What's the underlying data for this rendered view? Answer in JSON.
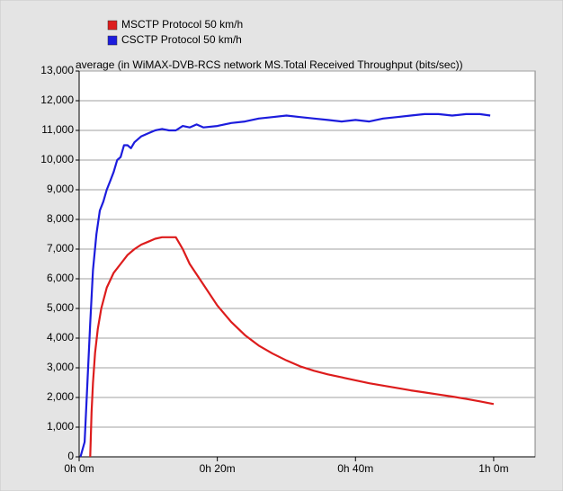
{
  "chart_data": {
    "type": "line",
    "title": "average (in WiMAX-DVB-RCS network MS.Total Received Throughput (bits/sec))",
    "legend": "top-left",
    "grid": true,
    "xlim": [
      0,
      66
    ],
    "xticks": [
      {
        "value": 0,
        "label": "0h 0m"
      },
      {
        "value": 20,
        "label": "0h 20m"
      },
      {
        "value": 40,
        "label": "0h 40m"
      },
      {
        "value": 60,
        "label": "1h 0m"
      }
    ],
    "ylim": [
      0,
      13000
    ],
    "yticks": [
      0,
      {
        "value": 1000,
        "label": "1,000"
      },
      {
        "value": 2000,
        "label": "2,000"
      },
      {
        "value": 3000,
        "label": "3,000"
      },
      {
        "value": 4000,
        "label": "4,000"
      },
      {
        "value": 5000,
        "label": "5,000"
      },
      {
        "value": 6000,
        "label": "6,000"
      },
      {
        "value": 7000,
        "label": "7,000"
      },
      {
        "value": 8000,
        "label": "8,000"
      },
      {
        "value": 9000,
        "label": "9,000"
      },
      {
        "value": 10000,
        "label": "10,000"
      },
      {
        "value": 11000,
        "label": "11,000"
      },
      {
        "value": 12000,
        "label": "12,000"
      },
      {
        "value": 13000,
        "label": "13,000"
      }
    ],
    "series": [
      {
        "name": "MSCTP Protocol 50 km/h",
        "color": "#dd1c1c",
        "x": [
          1.6,
          1.8,
          2,
          2.3,
          2.7,
          3.2,
          4,
          5,
          6,
          7,
          8,
          9,
          10,
          11,
          12,
          13.3,
          14,
          15,
          16,
          18,
          20,
          22,
          24,
          26,
          28,
          30,
          32,
          34,
          36,
          38,
          40,
          42,
          44,
          46,
          48,
          50,
          52,
          54,
          56,
          58,
          60
        ],
        "values": [
          0,
          1500,
          2500,
          3500,
          4300,
          5000,
          5700,
          6200,
          6500,
          6800,
          7000,
          7150,
          7250,
          7350,
          7400,
          7400,
          7400,
          7000,
          6500,
          5800,
          5100,
          4550,
          4100,
          3750,
          3480,
          3250,
          3050,
          2900,
          2780,
          2680,
          2580,
          2480,
          2400,
          2320,
          2240,
          2170,
          2100,
          2030,
          1950,
          1870,
          1780
        ]
      },
      {
        "name": "CSCTP Protocol 50 km/h",
        "color": "#1c1cdd",
        "x": [
          0.2,
          0.8,
          1.2,
          1.6,
          2,
          2.5,
          3,
          3.5,
          4,
          4.5,
          5,
          5.5,
          6,
          6.5,
          7,
          7.5,
          8,
          9,
          10,
          11,
          12,
          13,
          14,
          15,
          16,
          17,
          18,
          20,
          22,
          24,
          26,
          28,
          30,
          32,
          34,
          36,
          38,
          40,
          42,
          44,
          46,
          48,
          50,
          52,
          54,
          56,
          58,
          59.5
        ],
        "values": [
          0,
          500,
          2500,
          4500,
          6300,
          7500,
          8300,
          8600,
          9000,
          9300,
          9600,
          10000,
          10100,
          10500,
          10500,
          10400,
          10600,
          10800,
          10900,
          11000,
          11050,
          11000,
          11000,
          11150,
          11100,
          11200,
          11100,
          11150,
          11250,
          11300,
          11400,
          11450,
          11500,
          11450,
          11400,
          11350,
          11300,
          11350,
          11300,
          11400,
          11450,
          11500,
          11550,
          11550,
          11500,
          11550,
          11550,
          11500
        ]
      }
    ]
  }
}
